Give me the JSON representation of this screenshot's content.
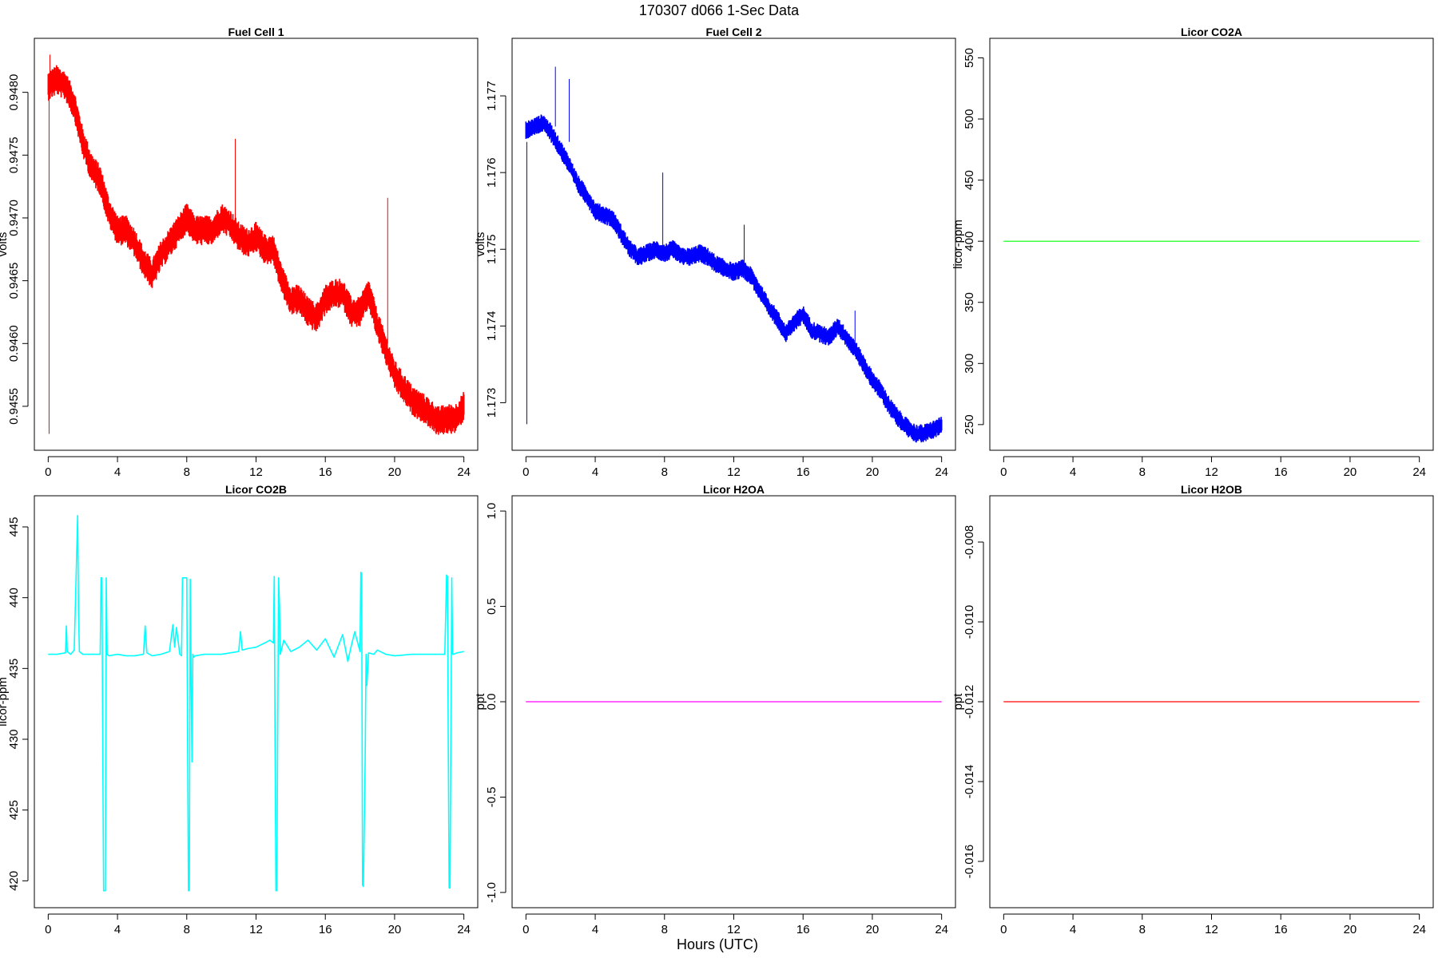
{
  "figure": {
    "title": "170307   d066   1-Sec Data",
    "xlabel": "Hours (UTC)"
  },
  "chart_data": [
    {
      "type": "line",
      "title": "Fuel Cell 1",
      "xlabel": "",
      "ylabel": "volts",
      "color": "#ff0000",
      "style": "noisy-band",
      "xlim": [
        -0.8,
        24.8
      ],
      "ylim": [
        0.94515,
        0.94843
      ],
      "xticks": [
        0,
        4,
        8,
        12,
        16,
        20,
        24
      ],
      "yticks": [
        0.9455,
        0.946,
        0.9465,
        0.947,
        0.9475,
        0.948
      ],
      "ytick_labels": [
        "0.9455",
        "0.9460",
        "0.9465",
        "0.9470",
        "0.9475",
        "0.9480"
      ],
      "noise": 0.00012,
      "series": [
        {
          "x": [
            0,
            0.5,
            1,
            1.5,
            2,
            2.5,
            3,
            3.5,
            4,
            4.5,
            5,
            5.5,
            6,
            6.5,
            7,
            7.5,
            8,
            8.5,
            9,
            9.5,
            10,
            10.5,
            11,
            11.5,
            12,
            12.5,
            13,
            13.5,
            14,
            14.5,
            15,
            15.5,
            16,
            16.5,
            17,
            17.5,
            18,
            18.5,
            19,
            19.5,
            20,
            20.5,
            21,
            21.5,
            22,
            22.5,
            23,
            23.5,
            24
          ],
          "values": [
            0.94805,
            0.9481,
            0.94805,
            0.9479,
            0.9476,
            0.9474,
            0.9473,
            0.94705,
            0.9469,
            0.9469,
            0.9468,
            0.94665,
            0.94655,
            0.9467,
            0.9468,
            0.9469,
            0.947,
            0.9469,
            0.9469,
            0.9469,
            0.947,
            0.94695,
            0.94685,
            0.9468,
            0.94685,
            0.94675,
            0.94675,
            0.9465,
            0.94635,
            0.94635,
            0.94625,
            0.9462,
            0.94635,
            0.9464,
            0.9464,
            0.94625,
            0.94625,
            0.9464,
            0.94615,
            0.94595,
            0.94575,
            0.94565,
            0.94555,
            0.9455,
            0.94545,
            0.94538,
            0.9454,
            0.9454,
            0.9455
          ]
        }
      ],
      "spikes": [
        {
          "x": 0.05,
          "from": 0.948,
          "to": 0.94528
        },
        {
          "x": 0.1,
          "from": 0.948,
          "to": 0.9483
        },
        {
          "x": 10.8,
          "from": 0.9469,
          "to": 0.94763
        },
        {
          "x": 19.6,
          "from": 0.946,
          "to": 0.94716
        }
      ]
    },
    {
      "type": "line",
      "title": "Fuel Cell 2",
      "xlabel": "",
      "ylabel": "volts",
      "color": "#0000ff",
      "style": "noisy-band",
      "xlim": [
        -0.8,
        24.8
      ],
      "ylim": [
        1.17238,
        1.17775
      ],
      "xticks": [
        0,
        4,
        8,
        12,
        16,
        20,
        24
      ],
      "yticks": [
        1.173,
        1.174,
        1.175,
        1.176,
        1.177
      ],
      "ytick_labels": [
        "1.173",
        "1.174",
        "1.175",
        "1.176",
        "1.177"
      ],
      "noise": 0.00012,
      "series": [
        {
          "x": [
            0,
            0.5,
            1,
            1.5,
            2,
            2.5,
            3,
            3.5,
            4,
            4.5,
            5,
            5.5,
            6,
            6.5,
            7,
            7.5,
            8,
            8.5,
            9,
            9.5,
            10,
            10.5,
            11,
            11.5,
            12,
            12.5,
            13,
            13.5,
            14,
            14.5,
            15,
            15.5,
            16,
            16.5,
            17,
            17.5,
            18,
            18.5,
            19,
            19.5,
            20,
            20.5,
            21,
            21.5,
            22,
            22.5,
            23,
            23.5,
            24
          ],
          "values": [
            1.17655,
            1.1766,
            1.17665,
            1.1765,
            1.1763,
            1.1761,
            1.17585,
            1.1757,
            1.1755,
            1.17545,
            1.1754,
            1.1752,
            1.175,
            1.1749,
            1.17495,
            1.175,
            1.17495,
            1.175,
            1.1749,
            1.1749,
            1.17495,
            1.1749,
            1.1748,
            1.17475,
            1.1747,
            1.17475,
            1.17465,
            1.17445,
            1.17425,
            1.1741,
            1.1739,
            1.17405,
            1.17415,
            1.17395,
            1.1739,
            1.17385,
            1.174,
            1.17385,
            1.1737,
            1.1735,
            1.1733,
            1.17315,
            1.17295,
            1.1728,
            1.17268,
            1.1726,
            1.1726,
            1.17265,
            1.1727
          ]
        }
      ],
      "spikes": [
        {
          "x": 0.05,
          "from": 1.1764,
          "to": 1.17272
        },
        {
          "x": 1.7,
          "from": 1.1766,
          "to": 1.17738
        },
        {
          "x": 2.5,
          "from": 1.1764,
          "to": 1.17722
        },
        {
          "x": 7.9,
          "from": 1.175,
          "to": 1.176
        },
        {
          "x": 12.6,
          "from": 1.1747,
          "to": 1.17532
        },
        {
          "x": 19.0,
          "from": 1.1737,
          "to": 1.1742
        }
      ]
    },
    {
      "type": "line",
      "title": "Licor CO2A",
      "xlabel": "",
      "ylabel": "licor-ppm",
      "color": "#00ff00",
      "style": "flat",
      "xlim": [
        -0.8,
        24.8
      ],
      "ylim": [
        229,
        566
      ],
      "xticks": [
        0,
        4,
        8,
        12,
        16,
        20,
        24
      ],
      "yticks": [
        250,
        300,
        350,
        400,
        450,
        500,
        550
      ],
      "ytick_labels": [
        "250",
        "300",
        "350",
        "400",
        "450",
        "500",
        "550"
      ],
      "series": [
        {
          "x": [
            0,
            24
          ],
          "values": [
            400,
            400
          ]
        }
      ]
    },
    {
      "type": "line",
      "title": "Licor CO2B",
      "xlabel": "",
      "ylabel": "licor-ppm",
      "color": "#00ffff",
      "style": "line",
      "xlim": [
        -0.8,
        24.8
      ],
      "ylim": [
        418.1,
        447.2
      ],
      "xticks": [
        0,
        4,
        8,
        12,
        16,
        20,
        24
      ],
      "yticks": [
        420,
        425,
        430,
        435,
        440,
        445
      ],
      "ytick_labels": [
        "420",
        "425",
        "430",
        "435",
        "440",
        "445"
      ],
      "series": [
        {
          "x": [
            0,
            0.5,
            1.0,
            1.05,
            1.1,
            1.3,
            1.5,
            1.7,
            1.75,
            1.8,
            2.0,
            2.5,
            3.0,
            3.05,
            3.1,
            3.15,
            3.2,
            3.3,
            3.35,
            3.4,
            3.5,
            4.0,
            4.5,
            5.0,
            5.5,
            5.6,
            5.7,
            6.0,
            6.5,
            7.0,
            7.2,
            7.3,
            7.4,
            7.6,
            7.7,
            7.75,
            8.0,
            8.05,
            8.1,
            8.15,
            8.2,
            8.3,
            8.35,
            8.4,
            8.5,
            9.0,
            10.0,
            11.0,
            11.1,
            11.2,
            11.5,
            12.0,
            12.5,
            12.8,
            13.0,
            13.05,
            13.1,
            13.15,
            13.2,
            13.3,
            13.35,
            13.4,
            13.6,
            14.0,
            14.5,
            15.0,
            15.5,
            16.0,
            16.5,
            17.0,
            17.3,
            17.5,
            17.7,
            18.0,
            18.05,
            18.1,
            18.15,
            18.2,
            18.3,
            18.35,
            18.4,
            18.5,
            18.8,
            19.0,
            19.5,
            20.0,
            21.0,
            22.0,
            22.9,
            23.0,
            23.05,
            23.1,
            23.15,
            23.2,
            23.3,
            23.35,
            23.4,
            23.6,
            24.0
          ],
          "values": [
            436.0,
            436.0,
            436.1,
            438.0,
            436.2,
            436.0,
            436.3,
            445.8,
            439.0,
            436.2,
            436.0,
            436.0,
            436.0,
            441.4,
            441.4,
            429.6,
            419.3,
            419.3,
            441.4,
            436.0,
            435.9,
            436.0,
            435.9,
            435.9,
            436.0,
            438.0,
            436.1,
            435.9,
            436.0,
            436.2,
            438.1,
            436.5,
            437.9,
            436.0,
            435.9,
            441.4,
            441.4,
            428.9,
            419.3,
            419.3,
            441.3,
            428.4,
            436.0,
            435.8,
            435.9,
            436.0,
            436.0,
            436.2,
            437.6,
            436.3,
            436.4,
            436.5,
            436.8,
            437.0,
            436.8,
            441.5,
            429.6,
            419.3,
            419.3,
            441.4,
            439.5,
            436.0,
            437.0,
            436.2,
            436.5,
            437.0,
            436.3,
            437.1,
            435.8,
            437.4,
            435.5,
            436.6,
            437.6,
            436.2,
            441.8,
            441.7,
            419.7,
            419.6,
            428.5,
            436.0,
            433.8,
            436.1,
            436.0,
            436.3,
            436.0,
            435.9,
            436.0,
            436.0,
            436.0,
            441.6,
            441.5,
            429.8,
            419.5,
            419.5,
            441.4,
            436.0,
            436.0,
            436.1,
            436.2
          ]
        }
      ]
    },
    {
      "type": "line",
      "title": "Licor H2OA",
      "xlabel": "",
      "ylabel": "ppt",
      "color": "#ff00ff",
      "style": "flat",
      "xlim": [
        -0.8,
        24.8
      ],
      "ylim": [
        -1.08,
        1.08
      ],
      "xticks": [
        0,
        4,
        8,
        12,
        16,
        20,
        24
      ],
      "yticks": [
        -1.0,
        -0.5,
        0.0,
        0.5,
        1.0
      ],
      "ytick_labels": [
        "-1.0",
        "-0.5",
        "0.0",
        "0.5",
        "1.0"
      ],
      "series": [
        {
          "x": [
            0,
            24
          ],
          "values": [
            0.0,
            0.0
          ]
        }
      ]
    },
    {
      "type": "line",
      "title": "Licor H2OB",
      "xlabel": "",
      "ylabel": "ppt",
      "color": "#ff0000",
      "style": "flat",
      "xlim": [
        -0.8,
        24.8
      ],
      "ylim": [
        -0.01716,
        -0.00684
      ],
      "xticks": [
        0,
        4,
        8,
        12,
        16,
        20,
        24
      ],
      "yticks": [
        -0.016,
        -0.014,
        -0.012,
        -0.01,
        -0.008
      ],
      "ytick_labels": [
        "-0.016",
        "-0.014",
        "-0.012",
        "-0.010",
        "-0.008"
      ],
      "series": [
        {
          "x": [
            0,
            24
          ],
          "values": [
            -0.012,
            -0.012
          ]
        }
      ]
    }
  ]
}
